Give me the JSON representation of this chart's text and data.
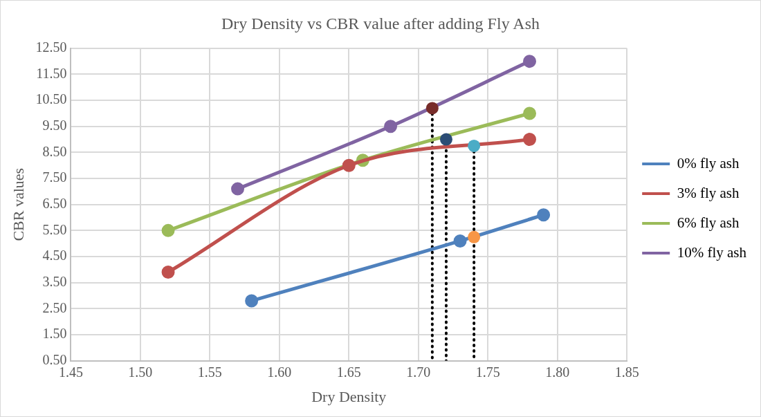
{
  "chart_data": {
    "type": "line",
    "title": "Dry Density vs CBR value after adding Fly Ash",
    "xlabel": "Dry Density",
    "ylabel": "CBR values",
    "xlim": [
      1.45,
      1.85
    ],
    "xticks": [
      {
        "value": 1.45,
        "label": "1.45"
      },
      {
        "value": 1.5,
        "label": "1.50"
      },
      {
        "value": 1.55,
        "label": "1.55"
      },
      {
        "value": 1.6,
        "label": "1.60"
      },
      {
        "value": 1.65,
        "label": "1.65"
      },
      {
        "value": 1.7,
        "label": "1.70"
      },
      {
        "value": 1.75,
        "label": "1.75"
      },
      {
        "value": 1.8,
        "label": "1.80"
      },
      {
        "value": 1.85,
        "label": "1.85"
      }
    ],
    "ylim": [
      0.5,
      12.5
    ],
    "yticks": [
      {
        "value": 0.5,
        "label": "0.50"
      },
      {
        "value": 1.5,
        "label": "1.50"
      },
      {
        "value": 2.5,
        "label": "2.50"
      },
      {
        "value": 3.5,
        "label": "3.50"
      },
      {
        "value": 4.5,
        "label": "4.50"
      },
      {
        "value": 5.5,
        "label": "5.50"
      },
      {
        "value": 6.5,
        "label": "6.50"
      },
      {
        "value": 7.5,
        "label": "7.50"
      },
      {
        "value": 8.5,
        "label": "8.50"
      },
      {
        "value": 9.5,
        "label": "9.50"
      },
      {
        "value": 10.5,
        "label": "10.50"
      },
      {
        "value": 11.5,
        "label": "11.50"
      },
      {
        "value": 12.5,
        "label": "12.50"
      }
    ],
    "grid": true,
    "legend": "right",
    "marker": "circle",
    "line_style": "solid",
    "series": [
      {
        "name": "0% fly ash",
        "color": "#4f81bd",
        "x": [
          1.58,
          1.73,
          1.79
        ],
        "values": [
          2.8,
          5.1,
          6.1
        ]
      },
      {
        "name": "3% fly ash",
        "color": "#c0504d",
        "x": [
          1.52,
          1.65,
          1.78
        ],
        "values": [
          3.9,
          8.0,
          9.0
        ]
      },
      {
        "name": "6% fly ash",
        "color": "#9bbb59",
        "x": [
          1.52,
          1.66,
          1.78
        ],
        "values": [
          5.5,
          8.2,
          10.0
        ]
      },
      {
        "name": "10% fly ash",
        "color": "#8064a2",
        "x": [
          1.57,
          1.68,
          1.78
        ],
        "values": [
          7.1,
          9.5,
          12.0
        ]
      },
      {
        "type": "line",
        "color": "#000000",
        "line_style": "dotted",
        "marker": "none",
        "x": [
          1.71,
          1.71
        ],
        "values": [
          10.2,
          0.5
        ]
      },
      {
        "type": "line",
        "color": "#000000",
        "line_style": "dotted",
        "marker": "none",
        "x": [
          1.72,
          1.72
        ],
        "values": [
          9.0,
          0.5
        ]
      },
      {
        "type": "line",
        "color": "#000000",
        "line_style": "dotted",
        "marker": "none",
        "x": [
          1.74,
          1.74
        ],
        "values": [
          8.75,
          0.5
        ]
      },
      {
        "type": "scatter",
        "colors": [
          "#772c2a",
          "#2c4d75",
          "#4bacc6",
          "#f79646"
        ],
        "x": [
          1.71,
          1.72,
          1.74,
          1.74
        ],
        "values": [
          10.2,
          9.0,
          8.75,
          5.25
        ]
      }
    ]
  }
}
